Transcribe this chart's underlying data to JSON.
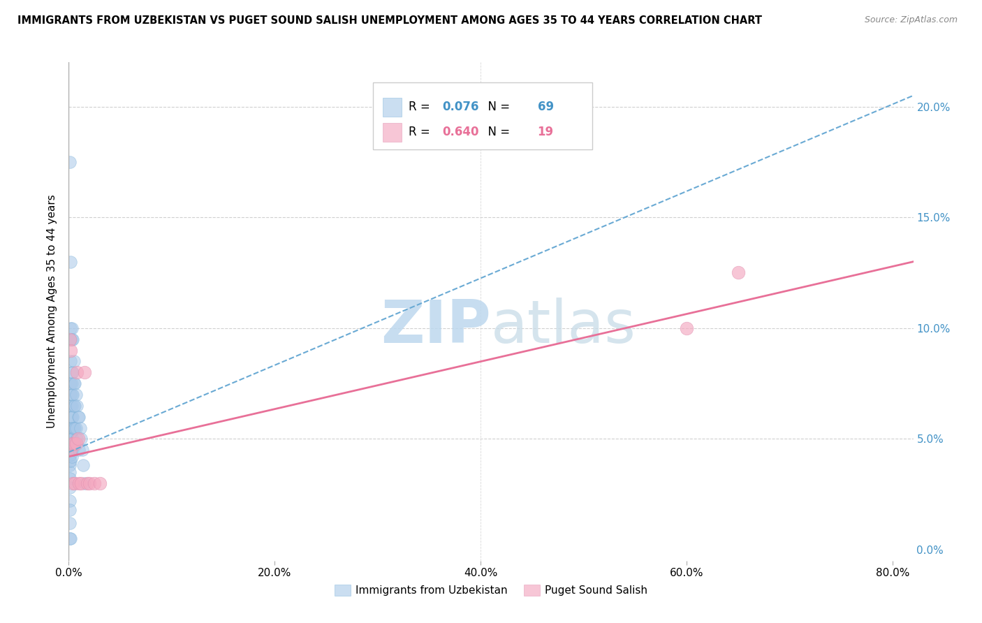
{
  "title": "IMMIGRANTS FROM UZBEKISTAN VS PUGET SOUND SALISH UNEMPLOYMENT AMONG AGES 35 TO 44 YEARS CORRELATION CHART",
  "source": "Source: ZipAtlas.com",
  "ylabel": "Unemployment Among Ages 35 to 44 years",
  "xlabel_ticks": [
    "0.0%",
    "20.0%",
    "40.0%",
    "60.0%",
    "80.0%"
  ],
  "ylabel_ticks": [
    "0.0%",
    "5.0%",
    "10.0%",
    "15.0%",
    "20.0%"
  ],
  "xlim": [
    0.0,
    0.82
  ],
  "ylim": [
    -0.005,
    0.22
  ],
  "blue_R": 0.076,
  "blue_N": 69,
  "pink_R": 0.64,
  "pink_N": 19,
  "blue_color": "#a8c8e8",
  "blue_line_color": "#6aaad4",
  "pink_color": "#f4a8c0",
  "pink_line_color": "#e87098",
  "watermark_zip": "ZIP",
  "watermark_atlas": "atlas",
  "watermark_color": "#d0e4f4",
  "legend_label_blue": "Immigrants from Uzbekistan",
  "legend_label_pink": "Puget Sound Salish",
  "blue_dots_x": [
    0.001,
    0.001,
    0.001,
    0.001,
    0.001,
    0.001,
    0.001,
    0.001,
    0.001,
    0.001,
    0.001,
    0.001,
    0.002,
    0.002,
    0.002,
    0.002,
    0.002,
    0.002,
    0.002,
    0.002,
    0.002,
    0.002,
    0.002,
    0.002,
    0.002,
    0.002,
    0.002,
    0.003,
    0.003,
    0.003,
    0.003,
    0.003,
    0.003,
    0.003,
    0.003,
    0.003,
    0.003,
    0.003,
    0.003,
    0.004,
    0.004,
    0.004,
    0.004,
    0.004,
    0.004,
    0.004,
    0.005,
    0.005,
    0.005,
    0.005,
    0.005,
    0.006,
    0.006,
    0.006,
    0.006,
    0.007,
    0.007,
    0.008,
    0.008,
    0.009,
    0.01,
    0.01,
    0.011,
    0.012,
    0.013,
    0.014,
    0.015,
    0.001,
    0.002
  ],
  "blue_dots_y": [
    0.175,
    0.05,
    0.045,
    0.043,
    0.04,
    0.038,
    0.035,
    0.032,
    0.028,
    0.022,
    0.018,
    0.012,
    0.13,
    0.1,
    0.095,
    0.085,
    0.075,
    0.07,
    0.065,
    0.06,
    0.055,
    0.052,
    0.05,
    0.048,
    0.046,
    0.043,
    0.04,
    0.1,
    0.095,
    0.08,
    0.075,
    0.07,
    0.065,
    0.06,
    0.055,
    0.05,
    0.048,
    0.045,
    0.042,
    0.095,
    0.08,
    0.07,
    0.06,
    0.055,
    0.05,
    0.045,
    0.085,
    0.075,
    0.065,
    0.055,
    0.048,
    0.075,
    0.065,
    0.055,
    0.048,
    0.07,
    0.055,
    0.065,
    0.05,
    0.06,
    0.06,
    0.045,
    0.055,
    0.05,
    0.045,
    0.038,
    0.03,
    0.005,
    0.005
  ],
  "pink_dots_x": [
    0.001,
    0.002,
    0.002,
    0.003,
    0.004,
    0.005,
    0.006,
    0.007,
    0.008,
    0.009,
    0.01,
    0.012,
    0.015,
    0.018,
    0.02,
    0.025,
    0.03,
    0.6,
    0.65
  ],
  "pink_dots_y": [
    0.095,
    0.09,
    0.045,
    0.048,
    0.03,
    0.048,
    0.03,
    0.048,
    0.08,
    0.05,
    0.03,
    0.03,
    0.08,
    0.03,
    0.03,
    0.03,
    0.03,
    0.1,
    0.125
  ],
  "blue_trend_x0": 0.0,
  "blue_trend_y0": 0.044,
  "blue_trend_x1": 0.82,
  "blue_trend_y1": 0.205,
  "pink_trend_x0": 0.0,
  "pink_trend_y0": 0.042,
  "pink_trend_x1": 0.82,
  "pink_trend_y1": 0.13
}
